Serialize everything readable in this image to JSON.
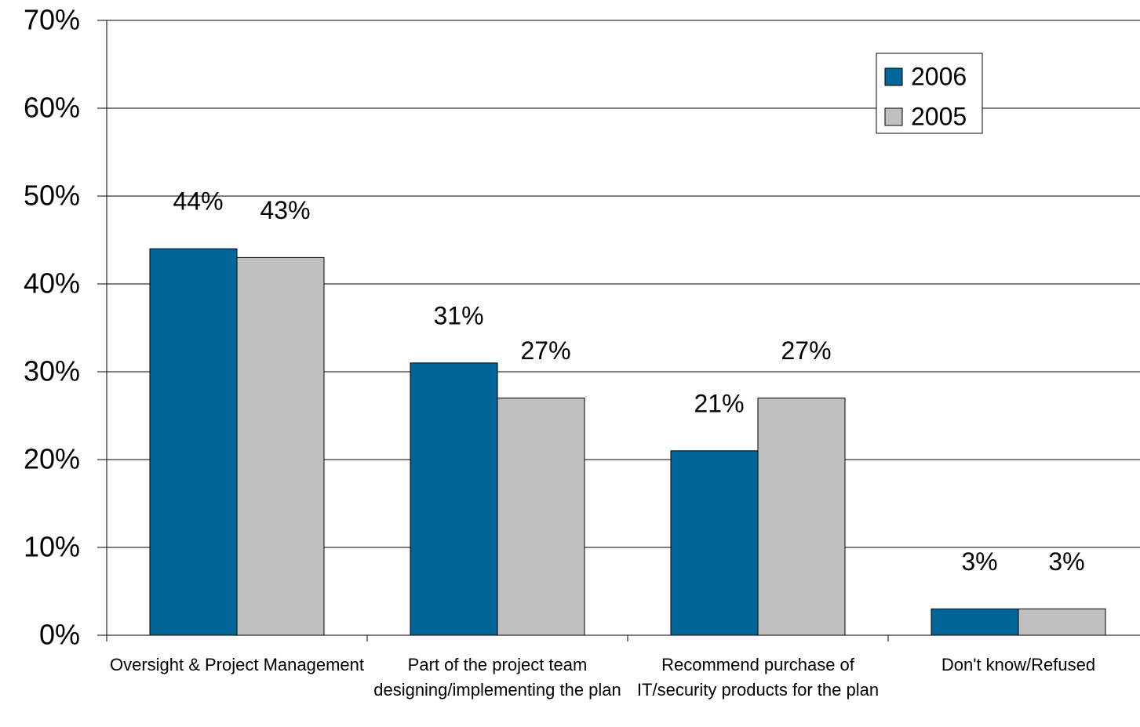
{
  "chart_data": {
    "type": "bar",
    "categories": [
      "Oversight & Project Management",
      "Part of the project team designing/implementing the plan",
      "Recommend purchase of IT/security products for the plan",
      "Don't know/Refused"
    ],
    "series": [
      {
        "name": "2006",
        "color": "#00669a",
        "values": [
          44,
          31,
          21,
          3
        ],
        "value_labels": [
          "44%",
          "31%",
          "21%",
          "3%"
        ]
      },
      {
        "name": "2005",
        "color": "#c0c0c0",
        "values": [
          43,
          27,
          27,
          3
        ],
        "value_labels": [
          "43%",
          "27%",
          "27%",
          "3%"
        ]
      }
    ],
    "ylim": [
      0,
      70
    ],
    "yticks": [
      {
        "value": 0,
        "label": "0%"
      },
      {
        "value": 10,
        "label": "10%"
      },
      {
        "value": 20,
        "label": "20%"
      },
      {
        "value": 30,
        "label": "30%"
      },
      {
        "value": 40,
        "label": "40%"
      },
      {
        "value": 50,
        "label": "50%"
      },
      {
        "value": 60,
        "label": "60%"
      },
      {
        "value": 70,
        "label": "70%"
      }
    ],
    "grid": true,
    "legend": "upper right"
  }
}
